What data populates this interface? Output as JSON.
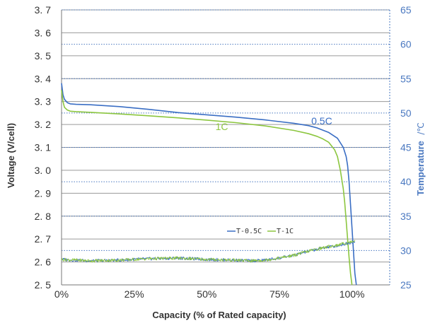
{
  "chart_data": {
    "type": "line",
    "xlabel": "Capacity  (% of Rated capacity)",
    "ylabel": "Voltage  (V/cell)",
    "y2label": "Temperature",
    "y2unit": "/℃",
    "xlim": [
      0,
      113
    ],
    "ylim": [
      2.5,
      3.7
    ],
    "y2lim": [
      25,
      65
    ],
    "x_ticks": [
      {
        "value": 0,
        "label": "0%"
      },
      {
        "value": 25,
        "label": "25%"
      },
      {
        "value": 50,
        "label": "50%"
      },
      {
        "value": 75,
        "label": "75%"
      },
      {
        "value": 100,
        "label": "100%"
      }
    ],
    "y_ticks": [
      {
        "value": 2.5,
        "label": "2. 5"
      },
      {
        "value": 2.6,
        "label": "2. 6"
      },
      {
        "value": 2.7,
        "label": "2. 7"
      },
      {
        "value": 2.8,
        "label": "2. 8"
      },
      {
        "value": 2.9,
        "label": "2. 9"
      },
      {
        "value": 3.0,
        "label": "3. 0"
      },
      {
        "value": 3.1,
        "label": "3. 1"
      },
      {
        "value": 3.2,
        "label": "3. 2"
      },
      {
        "value": 3.3,
        "label": "3. 3"
      },
      {
        "value": 3.4,
        "label": "3. 4"
      },
      {
        "value": 3.5,
        "label": "3. 5"
      },
      {
        "value": 3.6,
        "label": "3. 6"
      },
      {
        "value": 3.7,
        "label": "3. 7"
      }
    ],
    "y2_ticks": [
      {
        "value": 25,
        "label": "25"
      },
      {
        "value": 30,
        "label": "30"
      },
      {
        "value": 35,
        "label": "35"
      },
      {
        "value": 40,
        "label": "40"
      },
      {
        "value": 45,
        "label": "45"
      },
      {
        "value": 50,
        "label": "50"
      },
      {
        "value": 55,
        "label": "55"
      },
      {
        "value": 60,
        "label": "60"
      },
      {
        "value": 65,
        "label": "65"
      }
    ],
    "grid": true,
    "legend_position": "bottom-center",
    "series": [
      {
        "name": "0.5C",
        "axis": "voltage",
        "color": "#3a6ec4",
        "x": [
          0,
          0.5,
          1,
          2,
          3,
          5,
          10,
          20,
          30,
          40,
          50,
          60,
          70,
          80,
          85,
          88,
          92,
          95,
          97,
          98,
          98.5,
          99,
          99.5,
          100,
          100.5,
          101,
          101.5
        ],
        "y": [
          3.38,
          3.33,
          3.31,
          3.295,
          3.29,
          3.288,
          3.286,
          3.278,
          3.266,
          3.252,
          3.242,
          3.232,
          3.22,
          3.205,
          3.195,
          3.185,
          3.165,
          3.14,
          3.1,
          3.06,
          3.02,
          2.95,
          2.85,
          2.75,
          2.65,
          2.55,
          2.5
        ]
      },
      {
        "name": "1C",
        "axis": "voltage",
        "color": "#8cc63f",
        "x": [
          0,
          0.5,
          1,
          2,
          3,
          5,
          10,
          20,
          30,
          40,
          50,
          60,
          70,
          80,
          85,
          88,
          90,
          92,
          94,
          95,
          96,
          97,
          97.5,
          98,
          98.5,
          99,
          99.5,
          100
        ],
        "y": [
          3.35,
          3.3,
          3.275,
          3.263,
          3.258,
          3.256,
          3.253,
          3.246,
          3.238,
          3.229,
          3.219,
          3.208,
          3.194,
          3.174,
          3.16,
          3.148,
          3.137,
          3.122,
          3.09,
          3.06,
          3.0,
          2.92,
          2.86,
          2.78,
          2.7,
          2.62,
          2.55,
          2.5
        ]
      },
      {
        "name": "T-0.5C",
        "axis": "temperature",
        "color": "#3a6ec4",
        "x": [
          0,
          10,
          20,
          30,
          40,
          50,
          60,
          65,
          70,
          75,
          80,
          85,
          90,
          95,
          98,
          100,
          101
        ],
        "y": [
          28.7,
          28.5,
          28.6,
          28.8,
          28.9,
          28.7,
          28.6,
          28.5,
          28.6,
          28.9,
          29.3,
          29.9,
          30.4,
          30.7,
          31.0,
          31.2,
          31.4
        ]
      },
      {
        "name": "T-1C",
        "axis": "temperature",
        "color": "#8cc63f",
        "x": [
          0,
          10,
          20,
          30,
          40,
          50,
          60,
          65,
          70,
          75,
          80,
          85,
          90,
          95,
          98,
          100,
          101
        ],
        "y": [
          28.7,
          28.5,
          28.6,
          28.8,
          28.9,
          28.7,
          28.6,
          28.5,
          28.6,
          28.9,
          29.3,
          29.9,
          30.4,
          30.8,
          31.1,
          31.3,
          31.5
        ]
      }
    ],
    "annotations": [
      {
        "text": "0.5C",
        "x": 86,
        "y": 3.2,
        "color": "#3a6ec4"
      },
      {
        "text": "1C",
        "x": 53,
        "y": 3.175,
        "color": "#8cc63f"
      }
    ]
  }
}
